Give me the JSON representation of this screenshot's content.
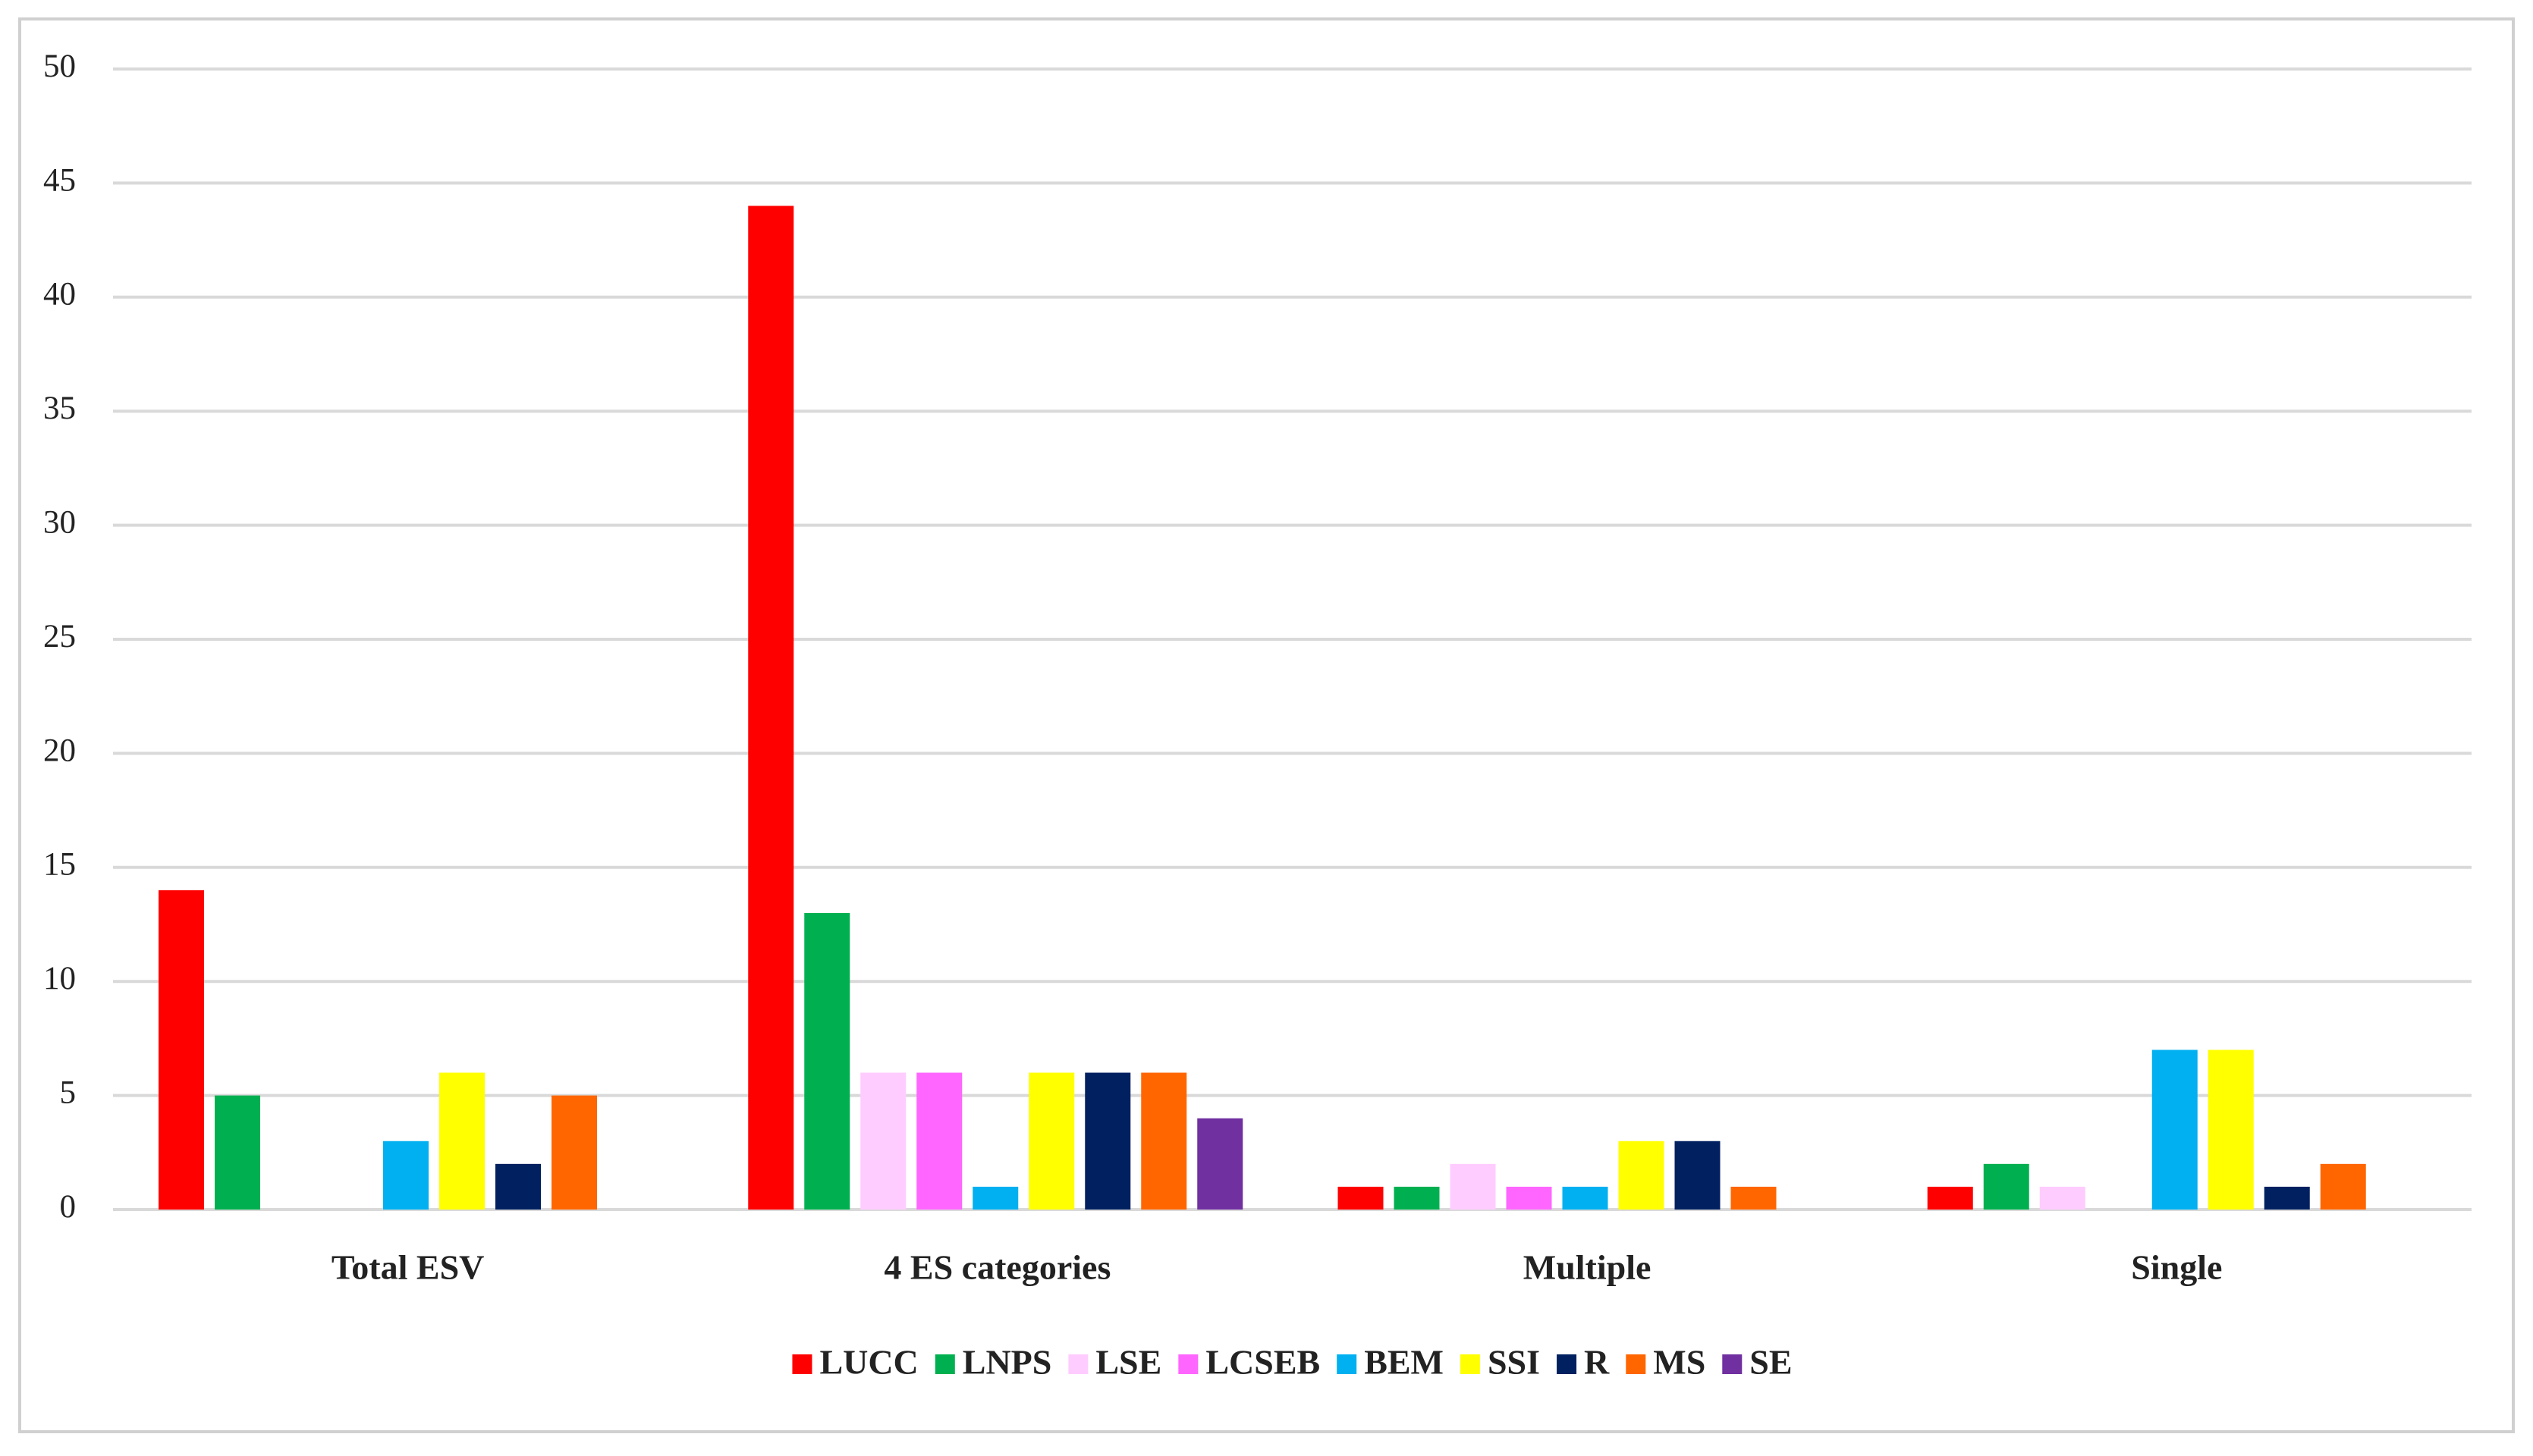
{
  "chart_data": {
    "type": "bar",
    "categories": [
      "Total ESV",
      "4 ES categories",
      "Multiple",
      "Single"
    ],
    "series": [
      {
        "name": "LUCC",
        "color": "#ff0000",
        "values": [
          14,
          44,
          1,
          1
        ]
      },
      {
        "name": "LNPS",
        "color": "#00b050",
        "values": [
          5,
          13,
          1,
          2
        ]
      },
      {
        "name": "LSE",
        "color": "#ffccff",
        "values": [
          0,
          6,
          2,
          1
        ]
      },
      {
        "name": "LCSEB",
        "color": "#ff66ff",
        "values": [
          0,
          6,
          1,
          0
        ]
      },
      {
        "name": "BEM",
        "color": "#00b0f0",
        "values": [
          3,
          1,
          1,
          7
        ]
      },
      {
        "name": "SSI",
        "color": "#ffff00",
        "values": [
          6,
          6,
          3,
          7
        ]
      },
      {
        "name": "R",
        "color": "#002060",
        "values": [
          2,
          6,
          3,
          1
        ]
      },
      {
        "name": "MS",
        "color": "#ff6600",
        "values": [
          5,
          6,
          1,
          2
        ]
      },
      {
        "name": "SE",
        "color": "#7030a0",
        "values": [
          0,
          4,
          0,
          0
        ]
      }
    ],
    "ylim": [
      0,
      50
    ],
    "yticks": [
      0,
      5,
      10,
      15,
      20,
      25,
      30,
      35,
      40,
      45,
      50
    ],
    "grid": true,
    "legend": "bottom"
  }
}
